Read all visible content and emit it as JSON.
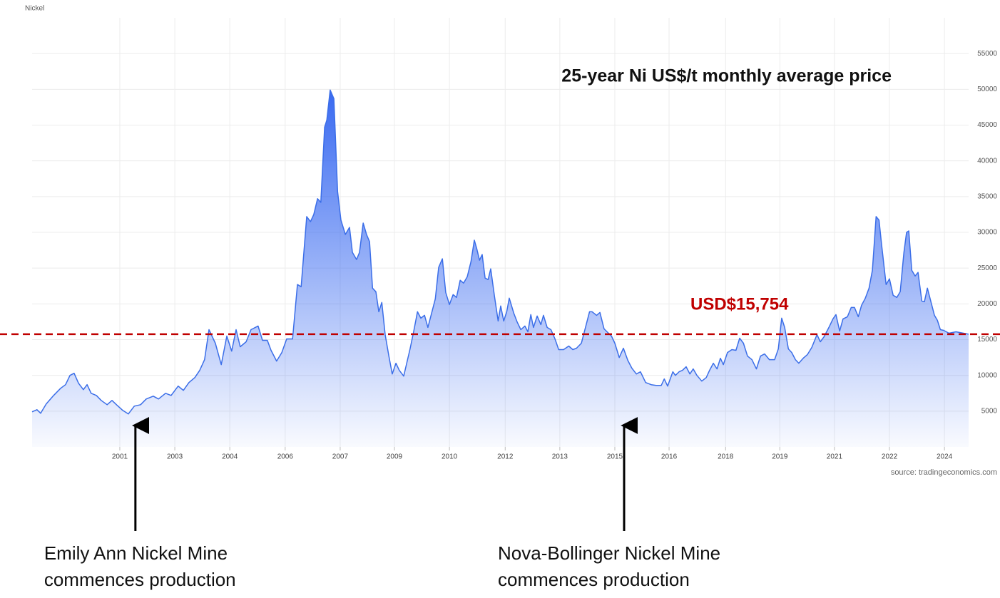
{
  "chart_data": {
    "type": "area",
    "title": "25-year Ni US$/t monthly average price",
    "source": "source: tradingeconomics.com",
    "series": [
      {
        "name": "Nickel",
        "color": "#3b6ee8",
        "x": [
          1999.0,
          1999.13,
          1999.23,
          1999.38,
          1999.58,
          1999.77,
          1999.9,
          2000.02,
          2000.13,
          2000.25,
          2000.38,
          2000.48,
          2000.59,
          2000.73,
          2000.86,
          2001.02,
          2001.15,
          2001.27,
          2001.44,
          2001.59,
          2001.75,
          2001.92,
          2002.07,
          2002.26,
          2002.4,
          2002.59,
          2002.74,
          2002.93,
          2003.07,
          2003.22,
          2003.38,
          2003.51,
          2003.64,
          2003.76,
          2003.93,
          2004.09,
          2004.24,
          2004.37,
          2004.49,
          2004.6,
          2004.76,
          2004.89,
          2005.08,
          2005.2,
          2005.33,
          2005.43,
          2005.58,
          2005.72,
          2005.85,
          2006.01,
          2006.14,
          2006.24,
          2006.39,
          2006.49,
          2006.58,
          2006.68,
          2006.77,
          2006.87,
          2006.93,
          2007.02,
          2007.12,
          2007.22,
          2007.31,
          2007.43,
          2007.54,
          2007.62,
          2007.73,
          2007.81,
          2007.91,
          2008.0,
          2008.08,
          2008.16,
          2008.25,
          2008.33,
          2008.41,
          2008.5,
          2008.6,
          2008.69,
          2008.79,
          2008.88,
          2009.0,
          2009.17,
          2009.27,
          2009.37,
          2009.46,
          2009.56,
          2009.65,
          2009.75,
          2009.85,
          2009.94,
          2010.04,
          2010.13,
          2010.23,
          2010.33,
          2010.42,
          2010.52,
          2010.61,
          2010.71,
          2010.81,
          2010.9,
          2010.96,
          2011.04,
          2011.11,
          2011.19,
          2011.27,
          2011.34,
          2011.44,
          2011.54,
          2011.61,
          2011.69,
          2011.77,
          2011.84,
          2011.96,
          2012.05,
          2012.15,
          2012.26,
          2012.34,
          2012.42,
          2012.49,
          2012.59,
          2012.69,
          2012.76,
          2012.86,
          2012.96,
          2013.07,
          2013.17,
          2013.3,
          2013.44,
          2013.55,
          2013.65,
          2013.78,
          2013.88,
          2014.0,
          2014.07,
          2014.19,
          2014.28,
          2014.39,
          2014.49,
          2014.59,
          2014.68,
          2014.8,
          2014.91,
          2015.03,
          2015.14,
          2015.26,
          2015.37,
          2015.51,
          2015.66,
          2015.79,
          2015.93,
          2016.01,
          2016.1,
          2016.24,
          2016.31,
          2016.41,
          2016.5,
          2016.6,
          2016.7,
          2016.79,
          2016.89,
          2017.02,
          2017.14,
          2017.23,
          2017.33,
          2017.43,
          2017.52,
          2017.6,
          2017.71,
          2017.83,
          2017.94,
          2018.04,
          2018.14,
          2018.25,
          2018.37,
          2018.49,
          2018.6,
          2018.71,
          2018.84,
          2018.98,
          2019.08,
          2019.17,
          2019.25,
          2019.35,
          2019.44,
          2019.54,
          2019.63,
          2019.75,
          2019.86,
          2019.98,
          2020.12,
          2020.21,
          2020.31,
          2020.44,
          2020.55,
          2020.63,
          2020.73,
          2020.82,
          2020.94,
          2021.04,
          2021.13,
          2021.23,
          2021.32,
          2021.42,
          2021.52,
          2021.61,
          2021.71,
          2021.79,
          2021.86,
          2021.98,
          2022.07,
          2022.17,
          2022.27,
          2022.36,
          2022.46,
          2022.53,
          2022.59,
          2022.67,
          2022.76,
          2022.84,
          2022.94,
          2023.01,
          2023.09,
          2023.19,
          2023.28,
          2023.36,
          2023.44,
          2023.53,
          2023.67,
          2023.86,
          2024.2
        ],
        "values": [
          4900,
          5200,
          4700,
          6000,
          7200,
          8200,
          8700,
          10000,
          10300,
          8900,
          8000,
          8700,
          7500,
          7200,
          6500,
          5900,
          6500,
          5900,
          5100,
          4600,
          5700,
          5900,
          6700,
          7100,
          6700,
          7500,
          7200,
          8500,
          7900,
          9000,
          9700,
          10700,
          12200,
          16400,
          14500,
          11500,
          15500,
          13400,
          16400,
          14000,
          14700,
          16400,
          16900,
          14900,
          14900,
          13500,
          12000,
          13200,
          15100,
          15100,
          22700,
          22400,
          32200,
          31500,
          32500,
          34700,
          34200,
          44700,
          45700,
          49900,
          48700,
          35700,
          31700,
          29700,
          30700,
          27200,
          26200,
          27200,
          31300,
          29700,
          28700,
          22200,
          21700,
          18900,
          20200,
          15700,
          12700,
          10200,
          11700,
          10700,
          9900,
          13700,
          16200,
          18900,
          18000,
          18400,
          16700,
          18700,
          20700,
          25100,
          26300,
          21600,
          19900,
          21300,
          20900,
          23300,
          22900,
          23800,
          25900,
          28900,
          27800,
          26100,
          26900,
          23600,
          23400,
          24900,
          21100,
          17600,
          19700,
          17600,
          18900,
          20800,
          18700,
          17500,
          16400,
          16900,
          16100,
          18500,
          16700,
          18300,
          17100,
          18400,
          16700,
          16400,
          15100,
          13600,
          13600,
          14100,
          13600,
          13800,
          14500,
          16500,
          18900,
          18900,
          18400,
          18800,
          16500,
          16000,
          15500,
          14500,
          12500,
          13800,
          12100,
          11000,
          10200,
          10500,
          9000,
          8700,
          8600,
          8600,
          9500,
          8500,
          10500,
          10000,
          10500,
          10700,
          11200,
          10200,
          10900,
          10000,
          9200,
          9700,
          10700,
          11700,
          10900,
          12400,
          11500,
          13200,
          13600,
          13500,
          15200,
          14500,
          12700,
          12200,
          10900,
          12700,
          13000,
          12200,
          12200,
          13700,
          18000,
          16700,
          13700,
          13200,
          12200,
          11700,
          12400,
          12900,
          13900,
          15700,
          14700,
          15400,
          16700,
          17900,
          18500,
          16200,
          17900,
          18200,
          19500,
          19500,
          18200,
          19800,
          20800,
          22200,
          24700,
          32200,
          31700,
          28200,
          22700,
          23500,
          21200,
          20900,
          21700,
          27200,
          30000,
          30200,
          24700,
          23900,
          24400,
          20400,
          20300,
          22200,
          20200,
          18400,
          17700,
          16400,
          16300,
          15900,
          16100,
          15754
        ]
      }
    ],
    "xlim": [
      1999.0,
      2024.2
    ],
    "xticks": [
      {
        "value": 2001.36,
        "label": "2001"
      },
      {
        "value": 2002.84,
        "label": "2003"
      },
      {
        "value": 2004.32,
        "label": "2004"
      },
      {
        "value": 2005.81,
        "label": "2006"
      },
      {
        "value": 2007.29,
        "label": "2007"
      },
      {
        "value": 2008.75,
        "label": "2009"
      },
      {
        "value": 2010.23,
        "label": "2010"
      },
      {
        "value": 2011.73,
        "label": "2012"
      },
      {
        "value": 2013.2,
        "label": "2013"
      },
      {
        "value": 2014.68,
        "label": "2015"
      },
      {
        "value": 2016.14,
        "label": "2016"
      },
      {
        "value": 2017.66,
        "label": "2018"
      },
      {
        "value": 2019.12,
        "label": "2019"
      },
      {
        "value": 2020.59,
        "label": "2021"
      },
      {
        "value": 2022.07,
        "label": "2022"
      },
      {
        "value": 2023.55,
        "label": "2024"
      }
    ],
    "ylim": [
      0,
      60000
    ],
    "yticks": [
      5000,
      10000,
      15000,
      20000,
      25000,
      30000,
      35000,
      40000,
      45000,
      50000,
      55000
    ],
    "grid": true,
    "reference_line": {
      "value": 15754,
      "label": "USD$15,754",
      "color": "#c00000"
    },
    "annotations": [
      {
        "x": 2001.78,
        "lines": [
          "Emily Ann Nickel Mine",
          "commences production"
        ]
      },
      {
        "x": 2014.93,
        "lines": [
          "Nova-Bollinger Nickel Mine",
          "commences production"
        ]
      }
    ]
  }
}
